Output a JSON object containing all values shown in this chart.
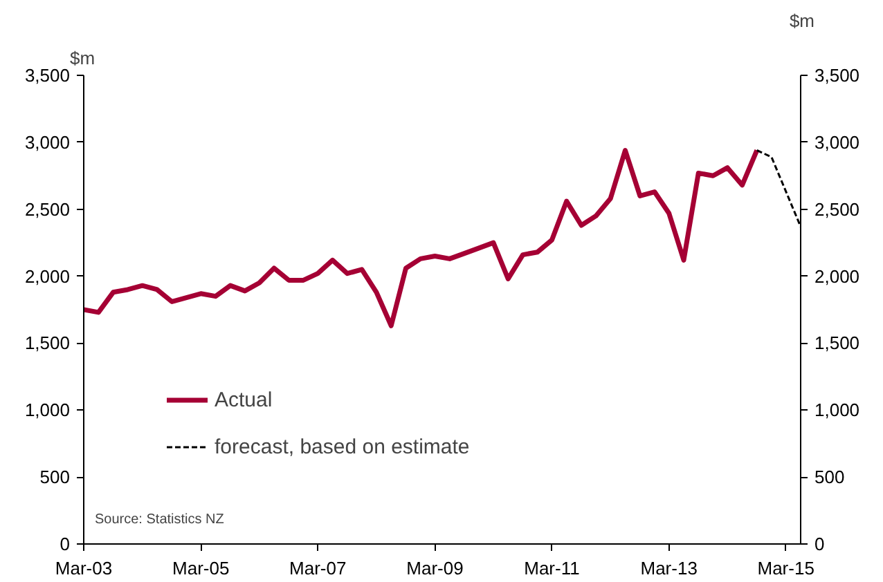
{
  "chart_data": {
    "type": "line",
    "ylabel": "$m",
    "y2label": "$m",
    "x": [
      "2003-03",
      "2003-06",
      "2003-09",
      "2003-12",
      "2004-03",
      "2004-06",
      "2004-09",
      "2004-12",
      "2005-03",
      "2005-06",
      "2005-09",
      "2005-12",
      "2006-03",
      "2006-06",
      "2006-09",
      "2006-12",
      "2007-03",
      "2007-06",
      "2007-09",
      "2007-12",
      "2008-03",
      "2008-06",
      "2008-09",
      "2008-12",
      "2009-03",
      "2009-06",
      "2009-09",
      "2009-12",
      "2010-03",
      "2010-06",
      "2010-09",
      "2010-12",
      "2011-03",
      "2011-06",
      "2011-09",
      "2011-12",
      "2012-03",
      "2012-06",
      "2012-09",
      "2012-12",
      "2013-03",
      "2013-06",
      "2013-09",
      "2013-12",
      "2014-03",
      "2014-06",
      "2014-09"
    ],
    "series": [
      {
        "name": "Actual",
        "color": "#a50034",
        "line_style": "solid",
        "values": [
          1750,
          1730,
          1880,
          1900,
          1930,
          1900,
          1810,
          1840,
          1870,
          1850,
          1930,
          1890,
          1950,
          2060,
          1970,
          1970,
          2020,
          2120,
          2020,
          2050,
          1880,
          1630,
          2060,
          2130,
          2150,
          2130,
          2170,
          2210,
          2250,
          1980,
          2160,
          2180,
          2270,
          2560,
          2380,
          2450,
          2580,
          2940,
          2600,
          2630,
          2470,
          2120,
          2770,
          2750,
          2810,
          2680,
          2940
        ]
      },
      {
        "name": "forecast, based on estimate",
        "color": "#000000",
        "line_style": "dashed",
        "x": [
          "2014-09",
          "2014-12",
          "2015-06"
        ],
        "values": [
          2940,
          2890,
          2370
        ]
      }
    ],
    "xlim": [
      "2003-03",
      "2015-06"
    ],
    "xticks": [
      {
        "value": "2003-03",
        "label": "Mar-03"
      },
      {
        "value": "2005-03",
        "label": "Mar-05"
      },
      {
        "value": "2007-03",
        "label": "Mar-07"
      },
      {
        "value": "2009-03",
        "label": "Mar-09"
      },
      {
        "value": "2011-03",
        "label": "Mar-11"
      },
      {
        "value": "2013-03",
        "label": "Mar-13"
      },
      {
        "value": "2015-03",
        "label": "Mar-15"
      }
    ],
    "ylim": [
      0,
      3500
    ],
    "yticks": [
      0,
      {
        "value": 500,
        "label": "500"
      },
      {
        "value": 1000,
        "label": "1,000"
      },
      {
        "value": 1500,
        "label": "1,500"
      },
      {
        "value": 2000,
        "label": "2,000"
      },
      {
        "value": 2500,
        "label": "2,500"
      },
      {
        "value": 3000,
        "label": "3,000"
      },
      {
        "value": 3500,
        "label": "3,500"
      }
    ],
    "y2lim": [
      0,
      3500
    ],
    "y2ticks": [
      0,
      {
        "value": 500,
        "label": "500"
      },
      {
        "value": 1000,
        "label": "1,000"
      },
      {
        "value": 1500,
        "label": "1,500"
      },
      {
        "value": 2000,
        "label": "2,000"
      },
      {
        "value": 2500,
        "label": "2,500"
      },
      {
        "value": 3000,
        "label": "3,000"
      },
      {
        "value": 3500,
        "label": "3,500"
      }
    ],
    "grid": false,
    "legend": "left",
    "annotations": [
      "Source: Statistics NZ"
    ]
  }
}
